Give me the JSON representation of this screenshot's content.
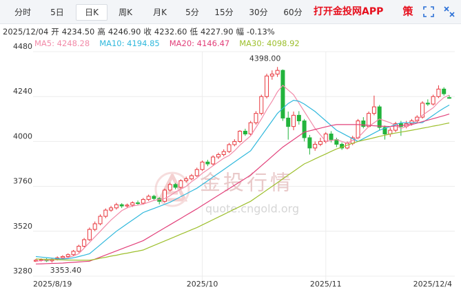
{
  "toolbar": {
    "tabs": [
      "分时",
      "5日",
      "日K",
      "周K",
      "月K",
      "5分",
      "15分",
      "30分",
      "60分"
    ],
    "active": 2,
    "app_link": "打开金投网APP",
    "strategy_icon": "策"
  },
  "info": {
    "date": "2025/12/04",
    "items": [
      {
        "label": "开",
        "value": "4234.50"
      },
      {
        "label": "高",
        "value": "4246.90"
      },
      {
        "label": "收",
        "value": "4232.60"
      },
      {
        "label": "低",
        "value": "4227.90"
      },
      {
        "label": "幅",
        "value": "-0.13%"
      }
    ]
  },
  "watermark": {
    "title": "金投行情",
    "url": "quote.cngold.org"
  },
  "chart_data": {
    "type": "candlestick",
    "categories": [
      "2025/8/19",
      null,
      null,
      null,
      null,
      null,
      null,
      null,
      null,
      null,
      null,
      null,
      null,
      null,
      null,
      null,
      null,
      null,
      null,
      null,
      null,
      null,
      null,
      null,
      null,
      null,
      null,
      null,
      null,
      null,
      null,
      "2025/10",
      null,
      null,
      null,
      null,
      null,
      null,
      null,
      null,
      null,
      null,
      null,
      null,
      null,
      null,
      null,
      null,
      null,
      null,
      null,
      null,
      null,
      null,
      "2025/11",
      null,
      null,
      null,
      null,
      null,
      null,
      null,
      null,
      null,
      null,
      null,
      null,
      null,
      null,
      null,
      null,
      null,
      null,
      null,
      null,
      null,
      null,
      "2025/12/4"
    ],
    "open": [
      3360,
      3365,
      3368,
      3362,
      3370,
      3378,
      3385,
      3395,
      3413,
      3440,
      3475,
      3530,
      3560,
      3600,
      3633,
      3645,
      3662,
      3655,
      3660,
      3672,
      3670,
      3690,
      3707,
      3695,
      3680,
      3740,
      3770,
      3755,
      3790,
      3800,
      3817,
      3850,
      3890,
      3880,
      3917,
      3930,
      3946,
      3983,
      4000,
      4055,
      4040,
      4100,
      4150,
      4240,
      4350,
      4360,
      4380,
      4125,
      4080,
      4140,
      4110,
      4020,
      3965,
      3985,
      4000,
      4040,
      4010,
      3985,
      3965,
      3990,
      4020,
      4110,
      4080,
      4150,
      4185,
      4075,
      4040,
      4060,
      4095,
      4080,
      4095,
      4110,
      4130,
      4205,
      4200,
      4240,
      4280,
      4234.5
    ],
    "high": [
      3372,
      3375,
      3376,
      3378,
      3386,
      3392,
      3402,
      3420,
      3448,
      3484,
      3540,
      3572,
      3610,
      3642,
      3656,
      3672,
      3670,
      3668,
      3680,
      3684,
      3698,
      3716,
      3715,
      3702,
      3748,
      3780,
      3778,
      3798,
      3812,
      3826,
      3860,
      3898,
      3902,
      3926,
      3940,
      3958,
      3992,
      4012,
      4060,
      4068,
      4110,
      4162,
      4250,
      4362,
      4380,
      4398,
      4385,
      4160,
      4160,
      4162,
      4120,
      4035,
      4000,
      4020,
      4050,
      4055,
      4020,
      3995,
      4000,
      4030,
      4120,
      4130,
      4160,
      4245,
      4195,
      4085,
      4075,
      4105,
      4110,
      4110,
      4120,
      4140,
      4215,
      4225,
      4250,
      4300,
      4290,
      4246.9
    ],
    "low": [
      3356,
      3358,
      3356,
      3353.4,
      3364,
      3370,
      3376,
      3388,
      3406,
      3434,
      3468,
      3520,
      3552,
      3590,
      3624,
      3636,
      3644,
      3646,
      3650,
      3660,
      3662,
      3682,
      3686,
      3664,
      3672,
      3732,
      3744,
      3748,
      3780,
      3792,
      3810,
      3842,
      3868,
      3872,
      3906,
      3920,
      3938,
      3974,
      3992,
      4030,
      4032,
      4090,
      4140,
      4230,
      4330,
      4345,
      4110,
      4010,
      4060,
      4090,
      4000,
      3930,
      3950,
      3975,
      3990,
      3995,
      3970,
      3955,
      3958,
      3980,
      4012,
      4070,
      4075,
      4140,
      4060,
      4010,
      4025,
      4050,
      4030,
      4070,
      4085,
      4100,
      4122,
      4190,
      4192,
      4232,
      4245,
      4227.9
    ],
    "close": [
      3365,
      3368,
      3362,
      3370,
      3378,
      3385,
      3395,
      3413,
      3440,
      3475,
      3530,
      3560,
      3600,
      3633,
      3645,
      3662,
      3655,
      3660,
      3672,
      3670,
      3690,
      3707,
      3695,
      3680,
      3740,
      3770,
      3755,
      3790,
      3800,
      3817,
      3850,
      3890,
      3880,
      3917,
      3930,
      3946,
      3983,
      4000,
      4055,
      4040,
      4100,
      4150,
      4240,
      4350,
      4360,
      4380,
      4125,
      4080,
      4140,
      4110,
      4020,
      3965,
      3985,
      4000,
      4040,
      4010,
      3985,
      3965,
      3990,
      4020,
      4110,
      4080,
      4150,
      4185,
      4075,
      4040,
      4060,
      4095,
      4080,
      4095,
      4110,
      4130,
      4205,
      4200,
      4240,
      4280,
      4255,
      4232.6
    ],
    "up_color": "#e8353b",
    "down_color": "#22b43c",
    "series": [
      {
        "name": "MA5: 4248.28",
        "color": "#f28aa8",
        "values": [
          3360,
          3363,
          3365,
          3367,
          3369,
          3373,
          3380,
          3388,
          3400,
          3430,
          3460,
          3490,
          3520,
          3550,
          3580,
          3605,
          3630,
          3645,
          3655,
          3660,
          3665,
          3675,
          3685,
          3690,
          3695,
          3710,
          3730,
          3745,
          3760,
          3785,
          3805,
          3830,
          3850,
          3870,
          3890,
          3910,
          3925,
          3950,
          3980,
          4005,
          4030,
          4075,
          4120,
          4170,
          4215,
          4265,
          4300,
          4275,
          4250,
          4205,
          4160,
          4115,
          4070,
          4035,
          4000,
          4005,
          4010,
          4000,
          3990,
          4005,
          4020,
          4050,
          4080,
          4100,
          4120,
          4110,
          4100,
          4085,
          4070,
          4080,
          4090,
          4115,
          4140,
          4160,
          4180,
          4210,
          4235,
          4248.28
        ]
      },
      {
        "name": "MA10: 4194.85",
        "color": "#2fb8dc",
        "values": [
          3385,
          3382,
          3379,
          3376,
          3374,
          3372,
          3374,
          3378,
          3385,
          3392,
          3400,
          3424,
          3448,
          3472,
          3496,
          3520,
          3540,
          3560,
          3580,
          3600,
          3620,
          3631,
          3642,
          3653,
          3664,
          3675,
          3690,
          3705,
          3720,
          3735,
          3750,
          3770,
          3790,
          3810,
          3830,
          3850,
          3870,
          3890,
          3910,
          3930,
          3950,
          3990,
          4030,
          4070,
          4110,
          4150,
          4177,
          4203,
          4220,
          4215,
          4200,
          4180,
          4160,
          4135,
          4110,
          4085,
          4060,
          4045,
          4030,
          4015,
          4000,
          4015,
          4030,
          4045,
          4060,
          4070,
          4080,
          4090,
          4100,
          4100,
          4100,
          4100,
          4100,
          4120,
          4140,
          4160,
          4178,
          4194.85
        ]
      },
      {
        "name": "MA20: 4146.47",
        "color": "#e2407a",
        "values": [
          3345,
          3346,
          3347,
          3348,
          3349,
          3350,
          3352,
          3354,
          3356,
          3358,
          3360,
          3371,
          3382,
          3393,
          3404,
          3415,
          3426,
          3437,
          3448,
          3459,
          3470,
          3487,
          3504,
          3521,
          3538,
          3555,
          3572,
          3589,
          3606,
          3623,
          3640,
          3658,
          3676,
          3694,
          3712,
          3730,
          3748,
          3766,
          3784,
          3802,
          3820,
          3845,
          3870,
          3895,
          3920,
          3945,
          3970,
          3990,
          4010,
          4030,
          4050,
          4057,
          4064,
          4071,
          4078,
          4085,
          4090,
          4090,
          4090,
          4090,
          4090,
          4088,
          4086,
          4084,
          4082,
          4081,
          4080,
          4083,
          4085,
          4088,
          4090,
          4098,
          4106,
          4114,
          4122,
          4130,
          4138,
          4146.47
        ]
      },
      {
        "name": "MA30: 4098.92",
        "color": "#9dbf2c",
        "values": [
          3372,
          3371,
          3370,
          3369,
          3368,
          3367,
          3366,
          3366,
          3365,
          3365,
          3365,
          3370,
          3376,
          3381,
          3387,
          3392,
          3398,
          3403,
          3409,
          3414,
          3420,
          3432,
          3444,
          3456,
          3468,
          3480,
          3492,
          3504,
          3516,
          3528,
          3540,
          3554,
          3568,
          3582,
          3596,
          3610,
          3624,
          3638,
          3652,
          3666,
          3680,
          3700,
          3720,
          3740,
          3760,
          3780,
          3800,
          3820,
          3840,
          3860,
          3880,
          3893,
          3907,
          3920,
          3933,
          3947,
          3960,
          3970,
          3980,
          3990,
          4000,
          4007,
          4013,
          4020,
          4027,
          4033,
          4040,
          4045,
          4050,
          4055,
          4060,
          4065,
          4071,
          4076,
          4082,
          4087,
          4093,
          4098.92
        ]
      }
    ],
    "annotations": [
      {
        "label": "4398.00",
        "value": 4398
      },
      {
        "label": "3353.40",
        "value": 3353.4
      }
    ],
    "ylim": [
      3280,
      4480
    ],
    "yticks": [
      3280,
      3520,
      3760,
      4000,
      4240,
      4480
    ],
    "grid": true
  }
}
